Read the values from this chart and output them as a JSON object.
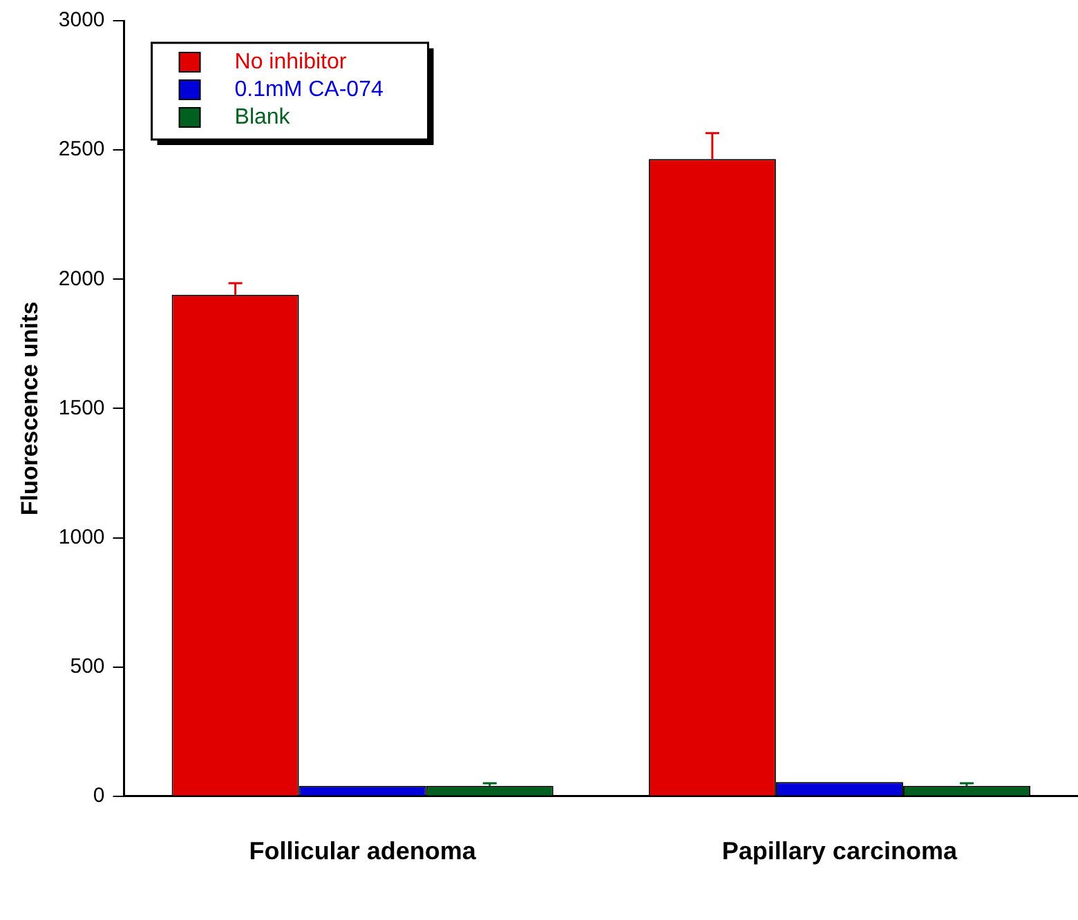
{
  "chart_data": {
    "type": "bar",
    "ylabel": "Fluorescence units",
    "categories": [
      "Follicular adenoma",
      "Papillary carcinoma"
    ],
    "series": [
      {
        "name": "No inhibitor",
        "color": "#e00000",
        "values": [
          1940,
          2465
        ],
        "errors": [
          45,
          100
        ]
      },
      {
        "name": "0.1mM CA-074",
        "color": "#0000d8",
        "values": [
          40,
          55
        ]
      },
      {
        "name": "Blank",
        "color": "#006020",
        "values": [
          40,
          40
        ],
        "errors": [
          10,
          10
        ]
      }
    ],
    "ylim": [
      0,
      3000
    ],
    "yticks": [
      0,
      500,
      1000,
      1500,
      2000,
      2500,
      3000
    ],
    "grid": false,
    "legend": "top left"
  }
}
